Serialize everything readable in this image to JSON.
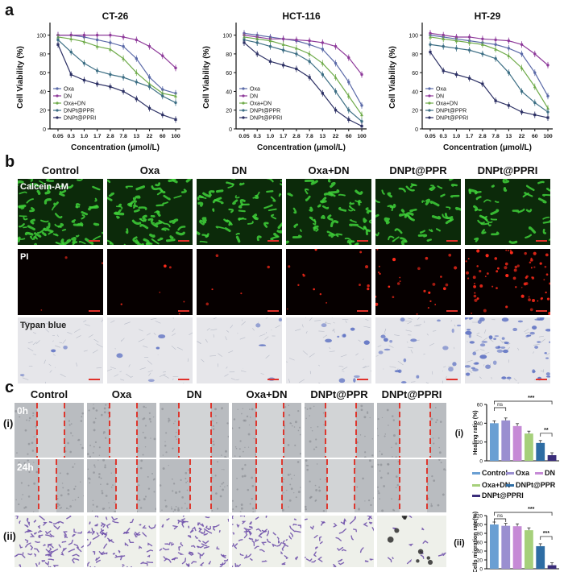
{
  "panels": {
    "a": "a",
    "b": "b",
    "c": "c"
  },
  "colors": {
    "Oxa": "#5b6aa8",
    "DN": "#8e3a9a",
    "Oxa+DN": "#6fab4a",
    "DNPt@PPR": "#3c6e84",
    "DNPt@PPRI": "#2c3064"
  },
  "viability_charts": [
    {
      "title": "CT-26",
      "ylabel": "Cell Viability (%)",
      "xlabel": "Concentration (μmol/L)",
      "ticks_x": [
        "0.05",
        "0.3",
        "1.0",
        "1.7",
        "2.8",
        "7.8",
        "13",
        "22",
        "60",
        "100"
      ],
      "ticks_y": [
        "0",
        "20",
        "40",
        "60",
        "80",
        "100"
      ],
      "legend": [
        "Oxa",
        "DN",
        "Oxa+DN",
        "DNPt@PPR",
        "DNPt@PPRI"
      ],
      "chart_data": {
        "type": "line",
        "ylim": [
          0,
          110
        ],
        "categories": [
          "0.05",
          "0.3",
          "1.0",
          "1.7",
          "2.8",
          "7.8",
          "13",
          "22",
          "60",
          "100"
        ],
        "series": [
          {
            "name": "Oxa",
            "values": [
              100,
              100,
              98,
              95,
              92,
              88,
              75,
              55,
              42,
              38
            ]
          },
          {
            "name": "DN",
            "values": [
              100,
              100,
              100,
              100,
              100,
              98,
              95,
              88,
              78,
              65
            ]
          },
          {
            "name": "Oxa+DN",
            "values": [
              98,
              96,
              93,
              88,
              85,
              75,
              60,
              48,
              38,
              35
            ]
          },
          {
            "name": "DNPt@PPR",
            "values": [
              95,
              82,
              70,
              62,
              58,
              55,
              50,
              45,
              35,
              28
            ]
          },
          {
            "name": "DNPt@PPRI",
            "values": [
              90,
              58,
              52,
              48,
              45,
              40,
              32,
              22,
              15,
              10
            ]
          }
        ]
      }
    },
    {
      "title": "HCT-116",
      "ylabel": "Cell Viability (%)",
      "xlabel": "Concentration (μmol/L)",
      "ticks_x": [
        "0.05",
        "0.3",
        "1.0",
        "1.7",
        "2.8",
        "7.8",
        "13",
        "22",
        "60",
        "100"
      ],
      "ticks_y": [
        "0",
        "20",
        "40",
        "60",
        "80",
        "100"
      ],
      "legend": [
        "Oxa",
        "DN",
        "Oxa+DN",
        "DNPt@PPR",
        "DNPt@PPRI"
      ],
      "chart_data": {
        "type": "line",
        "ylim": [
          0,
          110
        ],
        "categories": [
          "0.05",
          "0.3",
          "1.0",
          "1.7",
          "2.8",
          "7.8",
          "13",
          "22",
          "60",
          "100"
        ],
        "series": [
          {
            "name": "Oxa",
            "values": [
              102,
              100,
              98,
              96,
              94,
              90,
              85,
              70,
              50,
              25
            ]
          },
          {
            "name": "DN",
            "values": [
              100,
              98,
              96,
              96,
              95,
              94,
              92,
              88,
              76,
              58
            ]
          },
          {
            "name": "Oxa+DN",
            "values": [
              98,
              96,
              94,
              90,
              86,
              80,
              70,
              55,
              35,
              15
            ]
          },
          {
            "name": "DNPt@PPR",
            "values": [
              95,
              92,
              88,
              84,
              80,
              72,
              58,
              40,
              20,
              8
            ]
          },
          {
            "name": "DNPt@PPRI",
            "values": [
              92,
              80,
              72,
              68,
              64,
              55,
              38,
              20,
              10,
              3
            ]
          }
        ]
      }
    },
    {
      "title": "HT-29",
      "ylabel": "Cell Viability (%)",
      "xlabel": "Concentration (μmol/L)",
      "ticks_x": [
        "0.05",
        "0.3",
        "1.0",
        "1.7",
        "2.8",
        "7.8",
        "13",
        "22",
        "60",
        "100"
      ],
      "ticks_y": [
        "0",
        "20",
        "40",
        "60",
        "80",
        "100"
      ],
      "legend": [
        "Oxa",
        "DN",
        "Oxa+DN",
        "DNPt@PPR",
        "DNPt@PPRI"
      ],
      "chart_data": {
        "type": "line",
        "ylim": [
          0,
          110
        ],
        "categories": [
          "0.05",
          "0.3",
          "1.0",
          "1.7",
          "2.8",
          "7.8",
          "13",
          "22",
          "60",
          "100"
        ],
        "series": [
          {
            "name": "Oxa",
            "values": [
              100,
              98,
              96,
              94,
              92,
              90,
              86,
              80,
              60,
              35
            ]
          },
          {
            "name": "DN",
            "values": [
              102,
              100,
              98,
              98,
              96,
              95,
              94,
              90,
              80,
              68
            ]
          },
          {
            "name": "Oxa+DN",
            "values": [
              98,
              96,
              94,
              92,
              90,
              85,
              78,
              65,
              45,
              22
            ]
          },
          {
            "name": "DNPt@PPR",
            "values": [
              90,
              88,
              86,
              84,
              80,
              75,
              60,
              40,
              28,
              18
            ]
          },
          {
            "name": "DNPt@PPRI",
            "values": [
              82,
              62,
              58,
              54,
              48,
              30,
              25,
              18,
              15,
              12
            ]
          }
        ]
      }
    }
  ],
  "groups": [
    "Control",
    "Oxa",
    "DN",
    "Oxa+DN",
    "DNPt@PPR",
    "DNPt@PPRI"
  ],
  "b_rows": [
    "Calcein-AM",
    "PI",
    "Typan blue"
  ],
  "c_rows": {
    "i": "(i)",
    "ii": "(ii)",
    "t0": "0h",
    "t24": "24h"
  },
  "healing_chart": {
    "label": "(i)",
    "ylabel": "Healing ratio  (%)",
    "ticks_y": [
      "0",
      "20",
      "40",
      "60"
    ],
    "sig": [
      "ns",
      "***",
      "**"
    ],
    "chart_data": {
      "type": "bar",
      "ylim": [
        0,
        60
      ],
      "categories": [
        "Control",
        "Oxa",
        "DN",
        "Oxa+DN",
        "DNPt@PPR",
        "DNPt@PPRI"
      ],
      "values": [
        40,
        43,
        37,
        29,
        19,
        6
      ]
    }
  },
  "migration_chart": {
    "label": "(ii)",
    "ylabel": "Cells migration rate(%)",
    "ticks_y": [
      "0",
      "20",
      "40",
      "60",
      "80",
      "100",
      "120"
    ],
    "sig": [
      "ns",
      "***",
      "***"
    ],
    "chart_data": {
      "type": "bar",
      "ylim": [
        0,
        120
      ],
      "categories": [
        "Control",
        "Oxa",
        "DN",
        "Oxa+DN",
        "DNPt@PPR",
        "DNPt@PPRI"
      ],
      "values": [
        100,
        97,
        96,
        87,
        51,
        8
      ]
    }
  },
  "bar_legend": [
    "Control",
    "Oxa",
    "DN",
    "Oxa+DN",
    "DNPt@PPR",
    "DNPt@PPRI"
  ],
  "bar_colors": [
    "#6a9fd3",
    "#9a8fd0",
    "#c68ad6",
    "#a6d07b",
    "#2e6da4",
    "#3a2d7a"
  ]
}
